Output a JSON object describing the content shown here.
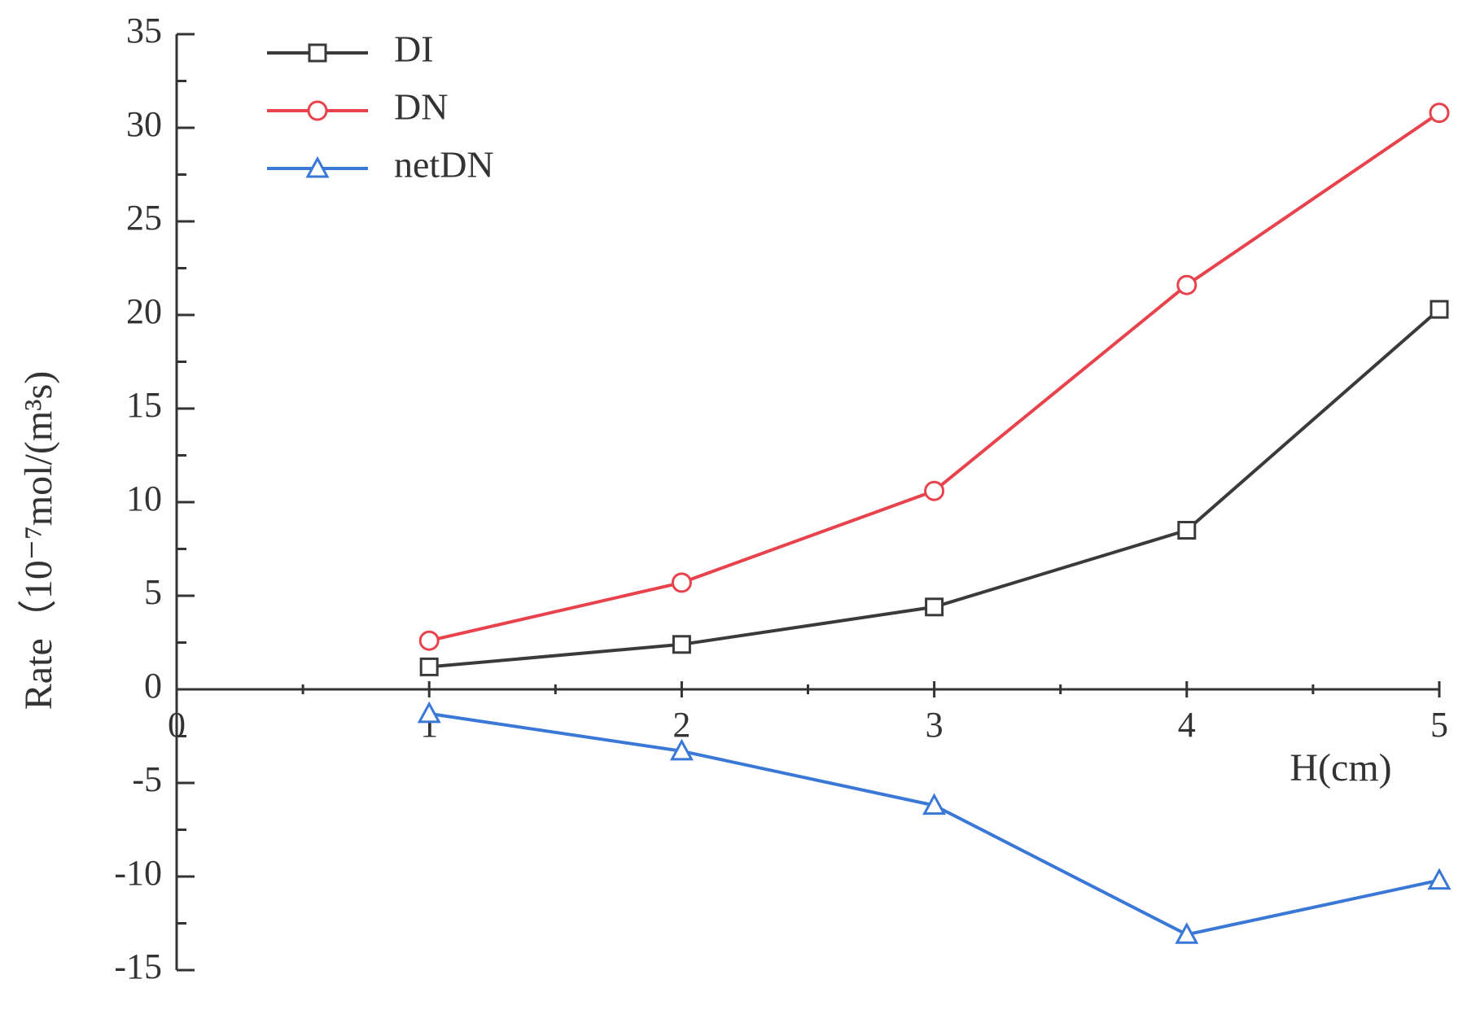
{
  "chart_data": {
    "type": "line",
    "x_label": "H(cm)",
    "y_label": "Rate（10⁻⁷mol/(m³s)",
    "x": [
      1,
      2,
      3,
      4,
      5
    ],
    "series": [
      {
        "name": "DI",
        "color": "#3a3a3a",
        "marker": "square",
        "values": [
          1.2,
          2.4,
          4.4,
          8.5,
          20.3
        ]
      },
      {
        "name": "DN",
        "color": "#e8434c",
        "marker": "circle",
        "values": [
          2.6,
          5.7,
          10.6,
          21.6,
          30.8
        ]
      },
      {
        "name": "netDN",
        "color": "#3a78d8",
        "marker": "triangle",
        "values": [
          -1.3,
          -3.3,
          -6.2,
          -13.1,
          -10.2
        ]
      }
    ],
    "xlim": [
      0,
      5
    ],
    "xticks": [
      0,
      1,
      2,
      3,
      4,
      5
    ],
    "ylim": [
      -15,
      35
    ],
    "yticks": [
      -15,
      -10,
      -5,
      0,
      5,
      10,
      15,
      20,
      25,
      30,
      35
    ],
    "grid": false
  }
}
